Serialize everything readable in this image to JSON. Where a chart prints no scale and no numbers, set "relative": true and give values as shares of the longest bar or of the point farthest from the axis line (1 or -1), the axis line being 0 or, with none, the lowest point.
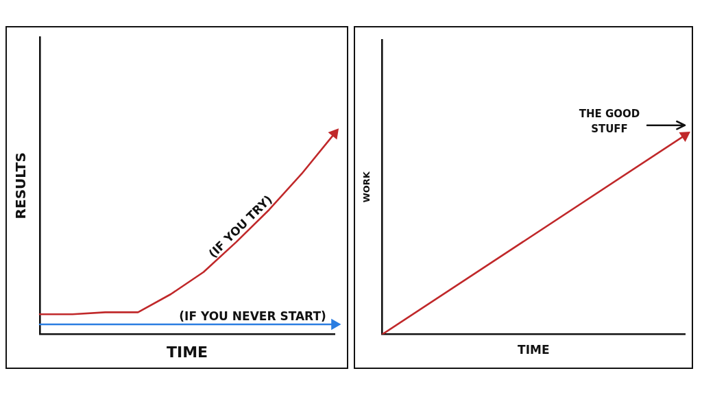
{
  "chart_data": [
    {
      "type": "line",
      "xlabel": "TIME",
      "ylabel": "RESULTS",
      "relative": true,
      "legend": false,
      "grid": false,
      "line_style": "solid",
      "categories": [
        null,
        null,
        null,
        null,
        null,
        null,
        null,
        null,
        null,
        null
      ],
      "series": [
        {
          "color": "#c0282a",
          "values": [
            0.1,
            0.1,
            0.11,
            0.11,
            0.2,
            0.31,
            0.46,
            0.62,
            0.8,
            1
          ]
        },
        {
          "color": "#2a7de1",
          "values": [
            0.05,
            0.05,
            0.05,
            0.05,
            0.05,
            0.05,
            0.05,
            0.05,
            0.05,
            0.05
          ]
        }
      ],
      "annotations": [
        "(IF YOU TRY)",
        "(IF YOU NEVER START)"
      ]
    },
    {
      "type": "line",
      "xlabel": "TIME",
      "ylabel": "WORK",
      "relative": true,
      "legend": false,
      "grid": false,
      "line_style": "solid",
      "categories": [
        null,
        null
      ],
      "series": [
        {
          "color": "#c0282a",
          "values": [
            0,
            1
          ]
        }
      ],
      "annotations": [
        "THE GOOD STUFF"
      ]
    }
  ]
}
